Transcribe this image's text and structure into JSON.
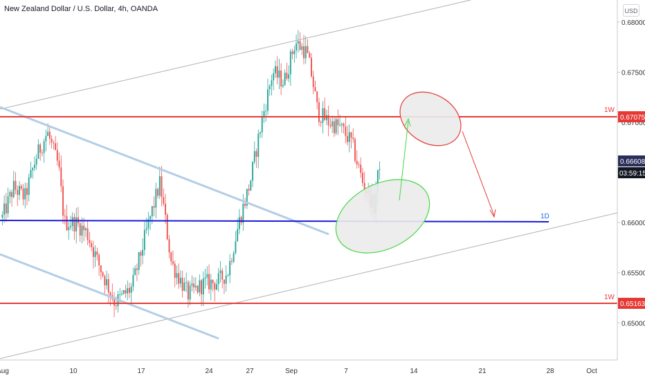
{
  "header": {
    "symbol_title": "New Zealand Dollar / U.S. Dollar, 4h, OANDA",
    "currency_button": "USD"
  },
  "colors": {
    "up": "#26a69a",
    "down": "#ef5350",
    "resistance_line": "#e53935",
    "support_line": "#1a1adc",
    "channel_line": "#b0b0b0",
    "falling_channel": "#b3cde6",
    "green_ellipse": "#43d743",
    "red_ellipse": "#e53935",
    "price_box_dark": "#131722",
    "price_box_blue": "#2a2e5a"
  },
  "chart_data": {
    "type": "candlestick",
    "title": "New Zealand Dollar / U.S. Dollar, 4h, OANDA",
    "x_tick_labels": [
      "Aug",
      "10",
      "17",
      "24",
      "27",
      "Sep",
      "7",
      "14",
      "21",
      "28",
      "Oct"
    ],
    "y_tick_labels": [
      "0.68000",
      "0.67500",
      "0.67000",
      "0.66500",
      "0.66000",
      "0.65500",
      "0.65000"
    ],
    "y_ticks": [
      0.68,
      0.675,
      0.67,
      0.665,
      0.66,
      0.655,
      0.65
    ],
    "ylim": [
      0.6463,
      0.6822
    ],
    "grid": false,
    "price_path": [
      {
        "t": 0,
        "p": 0.6605
      },
      {
        "t": 2,
        "p": 0.6635
      },
      {
        "t": 4,
        "p": 0.6625
      },
      {
        "t": 6,
        "p": 0.6665
      },
      {
        "t": 8,
        "p": 0.669
      },
      {
        "t": 10,
        "p": 0.6655
      },
      {
        "t": 11,
        "p": 0.66
      },
      {
        "t": 13,
        "p": 0.66
      },
      {
        "t": 15,
        "p": 0.659
      },
      {
        "t": 17,
        "p": 0.656
      },
      {
        "t": 20,
        "p": 0.652
      },
      {
        "t": 23,
        "p": 0.6535
      },
      {
        "t": 26,
        "p": 0.66
      },
      {
        "t": 28,
        "p": 0.664
      },
      {
        "t": 30,
        "p": 0.656
      },
      {
        "t": 33,
        "p": 0.6528
      },
      {
        "t": 36,
        "p": 0.654
      },
      {
        "t": 38,
        "p": 0.654
      },
      {
        "t": 40,
        "p": 0.655
      },
      {
        "t": 42,
        "p": 0.66
      },
      {
        "t": 44,
        "p": 0.664
      },
      {
        "t": 46,
        "p": 0.67
      },
      {
        "t": 48,
        "p": 0.675
      },
      {
        "t": 50,
        "p": 0.674
      },
      {
        "t": 52,
        "p": 0.678
      },
      {
        "t": 54,
        "p": 0.677
      },
      {
        "t": 55,
        "p": 0.6745
      },
      {
        "t": 56,
        "p": 0.671
      },
      {
        "t": 58,
        "p": 0.67
      },
      {
        "t": 60,
        "p": 0.6695
      },
      {
        "t": 62,
        "p": 0.668
      },
      {
        "t": 64,
        "p": 0.664
      },
      {
        "t": 66,
        "p": 0.6615
      },
      {
        "t": 67,
        "p": 0.666
      }
    ],
    "levels": [
      {
        "name": "1W",
        "price": 0.67075,
        "label": "0.67075"
      },
      {
        "name": "1D",
        "price": 0.66
      },
      {
        "name": "1W",
        "price": 0.65163,
        "label": "0.65163"
      }
    ],
    "last_price": "0.66608",
    "countdown": "03:59:15"
  }
}
